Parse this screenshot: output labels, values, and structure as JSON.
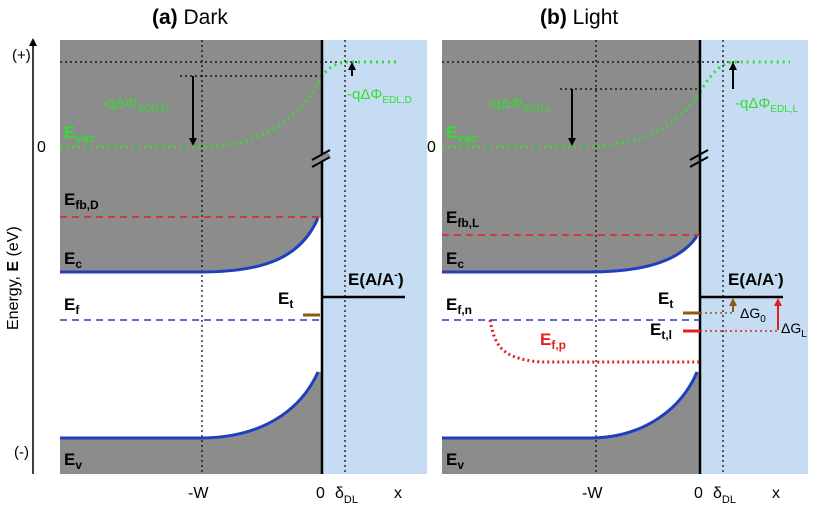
{
  "panels": {
    "dark": {
      "label": "(a)",
      "title": "Dark",
      "vac_label": "-qΔΦ",
      "vac_sub": "SCR,D",
      "edl_label": "-qΔΦ",
      "edl_sub": "EDL,D",
      "efb_main": "E",
      "efb_sub": "fb,D",
      "ec_main": "E",
      "ec_sub": "c",
      "ef_main": "E",
      "ef_sub": "f",
      "et_main": "E",
      "et_sub": "t",
      "redox_main": "E(A/A",
      "redox_sup": "-",
      "redox_close": ")",
      "ev_main": "E",
      "ev_sub": "v",
      "evac_main": "E",
      "evac_sub": "vac",
      "zero_energy": "0",
      "axis_neg_w": "-W",
      "axis_zero": "0",
      "axis_delta": "δ",
      "axis_delta_sub": "DL",
      "axis_x": "x"
    },
    "light": {
      "label": "(b)",
      "title": "Light",
      "vac_label": "-qΔΦ",
      "vac_sub": "SCR,L",
      "edl_label": "-qΔΦ",
      "edl_sub": "EDL,L",
      "efb_main": "E",
      "efb_sub": "fb,L",
      "ec_main": "E",
      "ec_sub": "c",
      "efn_main": "E",
      "efn_sub": "f,n",
      "efp_main": "E",
      "efp_sub": "f,p",
      "et_main": "E",
      "et_sub": "t",
      "etl_main": "E",
      "etl_sub": "t,l",
      "dg0_main": "ΔG",
      "dg0_sub": "0",
      "dgl_main": "ΔG",
      "dgl_sub": "L",
      "redox_main": "E(A/A",
      "redox_sup": "-",
      "redox_close": ")",
      "ev_main": "E",
      "ev_sub": "v",
      "evac_main": "E",
      "evac_sub": "vac",
      "zero_energy": "0",
      "axis_neg_w": "-W",
      "axis_zero": "0",
      "axis_delta": "δ",
      "axis_delta_sub": "DL",
      "axis_x": "x"
    }
  },
  "y_axis": {
    "label_pre": "Energy, ",
    "label_bold": "E",
    "label_post": " (eV)",
    "top_sign": "(+)",
    "bottom_sign": "(-)"
  },
  "colors": {
    "semiconductor": "#8c8c8c",
    "electrolyte": "#c6dcf2",
    "band": "#1f3fc0",
    "vacuum": "#33dd33",
    "fermi_blue": "#1f3fc0",
    "flatband_red": "#e02020",
    "quasi_fermi_p": "#e02020",
    "trap": "#8b5a1a",
    "black": "#000000"
  }
}
